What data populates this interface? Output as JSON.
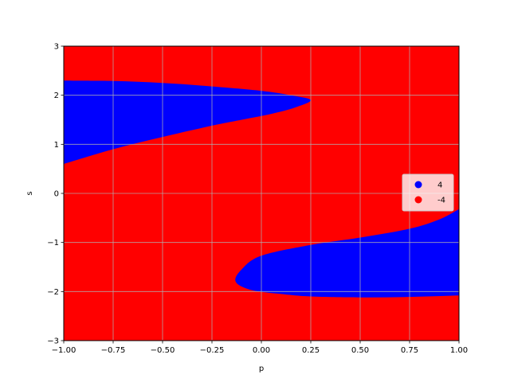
{
  "chart_data": {
    "type": "area",
    "xlabel": "p",
    "ylabel": "s",
    "xlim": [
      -1.0,
      1.0
    ],
    "ylim": [
      -3,
      3
    ],
    "grid": true,
    "background_region": {
      "value": -4,
      "color": "#ff0000"
    },
    "x_ticks": [
      -1.0,
      -0.75,
      -0.5,
      -0.25,
      0.0,
      0.25,
      0.5,
      0.75,
      1.0
    ],
    "x_tick_labels": [
      "−1.00",
      "−0.75",
      "−0.50",
      "−0.25",
      "0.00",
      "0.25",
      "0.50",
      "0.75",
      "1.00"
    ],
    "y_ticks": [
      -3,
      -2,
      -1,
      0,
      1,
      2,
      3
    ],
    "y_tick_labels": [
      "−3",
      "−2",
      "−1",
      "0",
      "1",
      "2",
      "3"
    ],
    "regions": [
      {
        "name": "upper",
        "value": 4,
        "color": "#0000ff",
        "boundary": [
          [
            -1.0,
            2.3
          ],
          [
            -0.75,
            2.29
          ],
          [
            -0.5,
            2.25
          ],
          [
            -0.25,
            2.18
          ],
          [
            0.0,
            2.09
          ],
          [
            0.15,
            2.0
          ],
          [
            0.25,
            1.9
          ],
          [
            0.17,
            1.75
          ],
          [
            0.05,
            1.62
          ],
          [
            -0.1,
            1.5
          ],
          [
            -0.25,
            1.38
          ],
          [
            -0.5,
            1.15
          ],
          [
            -0.75,
            0.9
          ],
          [
            -1.0,
            0.6
          ]
        ]
      },
      {
        "name": "lower",
        "value": 4,
        "color": "#0000ff",
        "boundary": [
          [
            1.0,
            -0.32
          ],
          [
            0.9,
            -0.53
          ],
          [
            0.75,
            -0.72
          ],
          [
            0.5,
            -0.9
          ],
          [
            0.25,
            -1.05
          ],
          [
            0.0,
            -1.27
          ],
          [
            -0.1,
            -1.55
          ],
          [
            -0.13,
            -1.8
          ],
          [
            -0.05,
            -1.97
          ],
          [
            0.1,
            -2.05
          ],
          [
            0.25,
            -2.1
          ],
          [
            0.5,
            -2.12
          ],
          [
            0.75,
            -2.11
          ],
          [
            1.0,
            -2.08
          ]
        ]
      }
    ],
    "legend": {
      "placement": "right",
      "entries": [
        {
          "label": "4",
          "color": "#0000ff"
        },
        {
          "label": "-4",
          "color": "#ff0000"
        }
      ]
    }
  }
}
